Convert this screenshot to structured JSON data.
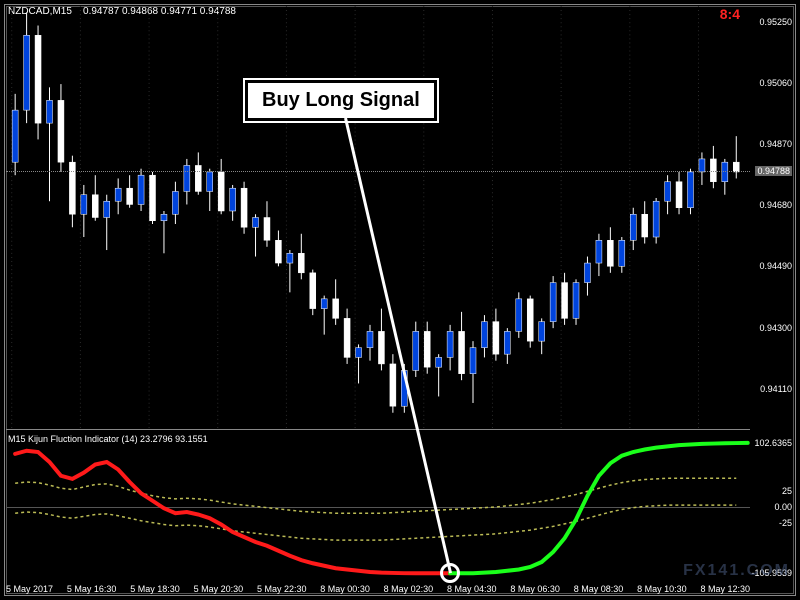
{
  "header": {
    "symbol": "NZDCAD,M15",
    "ohlc": "0.94787 0.94868 0.94771 0.94788",
    "clock": "8:4"
  },
  "main": {
    "ylim": [
      0.94,
      0.953
    ],
    "yticks": [
      0.9411,
      0.943,
      0.9449,
      0.9468,
      0.9487,
      0.9506,
      0.9525
    ],
    "current_price": 0.94788,
    "current_price_label": "0.94788",
    "bg": "#000000",
    "candle": {
      "up_body": "#0044dd",
      "down_body": "#ffffff",
      "wick": "#ffffff",
      "width": 6
    },
    "candles": [
      {
        "o": 0.9482,
        "h": 0.9503,
        "l": 0.9478,
        "c": 0.9498
      },
      {
        "o": 0.9498,
        "h": 0.9528,
        "l": 0.9494,
        "c": 0.9521
      },
      {
        "o": 0.9521,
        "h": 0.9524,
        "l": 0.9489,
        "c": 0.9494
      },
      {
        "o": 0.9494,
        "h": 0.9505,
        "l": 0.947,
        "c": 0.9501
      },
      {
        "o": 0.9501,
        "h": 0.9506,
        "l": 0.9479,
        "c": 0.9482
      },
      {
        "o": 0.9482,
        "h": 0.9484,
        "l": 0.9462,
        "c": 0.9466
      },
      {
        "o": 0.9466,
        "h": 0.9475,
        "l": 0.9459,
        "c": 0.9472
      },
      {
        "o": 0.9472,
        "h": 0.9478,
        "l": 0.9464,
        "c": 0.9465
      },
      {
        "o": 0.9465,
        "h": 0.9472,
        "l": 0.9455,
        "c": 0.947
      },
      {
        "o": 0.947,
        "h": 0.9477,
        "l": 0.9466,
        "c": 0.9474
      },
      {
        "o": 0.9474,
        "h": 0.9478,
        "l": 0.9468,
        "c": 0.9469
      },
      {
        "o": 0.9469,
        "h": 0.948,
        "l": 0.9467,
        "c": 0.9478
      },
      {
        "o": 0.9478,
        "h": 0.9479,
        "l": 0.9463,
        "c": 0.9464
      },
      {
        "o": 0.9464,
        "h": 0.9467,
        "l": 0.9454,
        "c": 0.9466
      },
      {
        "o": 0.9466,
        "h": 0.9476,
        "l": 0.9463,
        "c": 0.9473
      },
      {
        "o": 0.9473,
        "h": 0.9483,
        "l": 0.9469,
        "c": 0.9481
      },
      {
        "o": 0.9481,
        "h": 0.9485,
        "l": 0.9472,
        "c": 0.9473
      },
      {
        "o": 0.9473,
        "h": 0.948,
        "l": 0.9467,
        "c": 0.9479
      },
      {
        "o": 0.9479,
        "h": 0.9483,
        "l": 0.9466,
        "c": 0.9467
      },
      {
        "o": 0.9467,
        "h": 0.9475,
        "l": 0.9464,
        "c": 0.9474
      },
      {
        "o": 0.9474,
        "h": 0.9476,
        "l": 0.946,
        "c": 0.9462
      },
      {
        "o": 0.9462,
        "h": 0.9466,
        "l": 0.9453,
        "c": 0.9465
      },
      {
        "o": 0.9465,
        "h": 0.947,
        "l": 0.9456,
        "c": 0.9458
      },
      {
        "o": 0.9458,
        "h": 0.9461,
        "l": 0.945,
        "c": 0.9451
      },
      {
        "o": 0.9451,
        "h": 0.9455,
        "l": 0.9442,
        "c": 0.9454
      },
      {
        "o": 0.9454,
        "h": 0.946,
        "l": 0.9446,
        "c": 0.9448
      },
      {
        "o": 0.9448,
        "h": 0.9449,
        "l": 0.9435,
        "c": 0.9437
      },
      {
        "o": 0.9437,
        "h": 0.9441,
        "l": 0.9429,
        "c": 0.944
      },
      {
        "o": 0.944,
        "h": 0.9446,
        "l": 0.9432,
        "c": 0.9434
      },
      {
        "o": 0.9434,
        "h": 0.9437,
        "l": 0.942,
        "c": 0.9422
      },
      {
        "o": 0.9422,
        "h": 0.9426,
        "l": 0.9414,
        "c": 0.9425
      },
      {
        "o": 0.9425,
        "h": 0.9432,
        "l": 0.9421,
        "c": 0.943
      },
      {
        "o": 0.943,
        "h": 0.9437,
        "l": 0.9418,
        "c": 0.942
      },
      {
        "o": 0.942,
        "h": 0.9423,
        "l": 0.9405,
        "c": 0.9407
      },
      {
        "o": 0.9407,
        "h": 0.942,
        "l": 0.9405,
        "c": 0.9418
      },
      {
        "o": 0.9418,
        "h": 0.9433,
        "l": 0.9416,
        "c": 0.943
      },
      {
        "o": 0.943,
        "h": 0.9433,
        "l": 0.9417,
        "c": 0.9419
      },
      {
        "o": 0.9419,
        "h": 0.9423,
        "l": 0.941,
        "c": 0.9422
      },
      {
        "o": 0.9422,
        "h": 0.9432,
        "l": 0.9418,
        "c": 0.943
      },
      {
        "o": 0.943,
        "h": 0.9436,
        "l": 0.9415,
        "c": 0.9417
      },
      {
        "o": 0.9417,
        "h": 0.9427,
        "l": 0.9408,
        "c": 0.9425
      },
      {
        "o": 0.9425,
        "h": 0.9435,
        "l": 0.9422,
        "c": 0.9433
      },
      {
        "o": 0.9433,
        "h": 0.9437,
        "l": 0.9421,
        "c": 0.9423
      },
      {
        "o": 0.9423,
        "h": 0.9431,
        "l": 0.942,
        "c": 0.943
      },
      {
        "o": 0.943,
        "h": 0.9442,
        "l": 0.9428,
        "c": 0.944
      },
      {
        "o": 0.944,
        "h": 0.9441,
        "l": 0.9425,
        "c": 0.9427
      },
      {
        "o": 0.9427,
        "h": 0.9434,
        "l": 0.9423,
        "c": 0.9433
      },
      {
        "o": 0.9433,
        "h": 0.9447,
        "l": 0.9431,
        "c": 0.9445
      },
      {
        "o": 0.9445,
        "h": 0.9448,
        "l": 0.9432,
        "c": 0.9434
      },
      {
        "o": 0.9434,
        "h": 0.9446,
        "l": 0.9432,
        "c": 0.9445
      },
      {
        "o": 0.9445,
        "h": 0.9453,
        "l": 0.9441,
        "c": 0.9451
      },
      {
        "o": 0.9451,
        "h": 0.946,
        "l": 0.9447,
        "c": 0.9458
      },
      {
        "o": 0.9458,
        "h": 0.9462,
        "l": 0.9448,
        "c": 0.945
      },
      {
        "o": 0.945,
        "h": 0.9459,
        "l": 0.9448,
        "c": 0.9458
      },
      {
        "o": 0.9458,
        "h": 0.9468,
        "l": 0.9455,
        "c": 0.9466
      },
      {
        "o": 0.9466,
        "h": 0.947,
        "l": 0.9457,
        "c": 0.9459
      },
      {
        "o": 0.9459,
        "h": 0.9471,
        "l": 0.9457,
        "c": 0.947
      },
      {
        "o": 0.947,
        "h": 0.9478,
        "l": 0.9466,
        "c": 0.9476
      },
      {
        "o": 0.9476,
        "h": 0.9479,
        "l": 0.9466,
        "c": 0.9468
      },
      {
        "o": 0.9468,
        "h": 0.948,
        "l": 0.9466,
        "c": 0.9479
      },
      {
        "o": 0.9479,
        "h": 0.9485,
        "l": 0.9475,
        "c": 0.9483
      },
      {
        "o": 0.9483,
        "h": 0.9487,
        "l": 0.9474,
        "c": 0.9476
      },
      {
        "o": 0.9476,
        "h": 0.9483,
        "l": 0.9472,
        "c": 0.9482
      },
      {
        "o": 0.9482,
        "h": 0.949,
        "l": 0.9477,
        "c": 0.9479
      }
    ]
  },
  "indicator": {
    "title": "M15 Kijun Fluction Indicator (14) 23.2796 93.1551",
    "ylim": [
      -120,
      120
    ],
    "yticks": [
      {
        "v": 102.6365,
        "label": "102.6365"
      },
      {
        "v": 25,
        "label": "25"
      },
      {
        "v": 0,
        "label": "0.00"
      },
      {
        "v": -25,
        "label": "-25"
      },
      {
        "v": -105.9539,
        "label": "-105.9539"
      }
    ],
    "red_color": "#ff1a1a",
    "green_color": "#1aff1a",
    "dash_color": "#bbbb55",
    "line_width": 4,
    "dash_width": 1.5,
    "red_points": [
      85,
      90,
      88,
      72,
      50,
      45,
      55,
      68,
      72,
      60,
      40,
      22,
      10,
      -2,
      -10,
      -8,
      -12,
      -18,
      -28,
      -40,
      -48,
      -56,
      -62,
      -70,
      -78,
      -85,
      -90,
      -94,
      -98,
      -100,
      -102,
      -104,
      -105,
      -105.5,
      -105.9,
      -106,
      -106,
      -106,
      -106
    ],
    "green_points": [
      -106,
      -106,
      -106,
      -105,
      -104,
      -102,
      -100,
      -96,
      -88,
      -72,
      -50,
      -20,
      18,
      50,
      70,
      82,
      88,
      92,
      95,
      97,
      99,
      100,
      101,
      101.5,
      102,
      102.3,
      102.6
    ],
    "split_index": 38,
    "dash_upper": [
      38,
      40,
      39,
      35,
      30,
      28,
      32,
      36,
      37,
      33,
      27,
      22,
      18,
      15,
      13,
      14,
      13,
      11,
      8,
      5,
      3,
      1,
      -1,
      -3,
      -5,
      -7,
      -8,
      -9,
      -10,
      -10,
      -10,
      -10,
      -10,
      -9,
      -8,
      -7,
      -6,
      -5,
      -4,
      -3,
      -2,
      -1,
      0,
      2,
      4,
      6,
      9,
      12,
      16,
      20,
      25,
      30,
      35,
      39,
      42,
      44,
      45,
      46,
      46,
      46,
      46,
      46,
      46,
      46
    ],
    "dash_lower": [
      -10,
      -8,
      -9,
      -12,
      -16,
      -18,
      -15,
      -12,
      -11,
      -14,
      -18,
      -22,
      -25,
      -28,
      -30,
      -29,
      -30,
      -32,
      -35,
      -38,
      -40,
      -42,
      -44,
      -46,
      -48,
      -50,
      -51,
      -52,
      -53,
      -53,
      -53,
      -53,
      -53,
      -52,
      -51,
      -50,
      -49,
      -48,
      -47,
      -46,
      -45,
      -44,
      -43,
      -41,
      -39,
      -37,
      -34,
      -31,
      -27,
      -23,
      -18,
      -13,
      -8,
      -4,
      -1,
      1,
      2,
      3,
      3,
      3,
      3,
      3,
      3,
      3
    ]
  },
  "xlabels": [
    "5 May 2017",
    "5 May 16:30",
    "5 May 18:30",
    "5 May 20:30",
    "5 May 22:30",
    "8 May 00:30",
    "8 May 02:30",
    "8 May 04:30",
    "8 May 06:30",
    "8 May 08:30",
    "8 May 10:30",
    "8 May 12:30"
  ],
  "callout": {
    "text": "Buy Long Signal"
  },
  "watermark": "FX141.COM"
}
